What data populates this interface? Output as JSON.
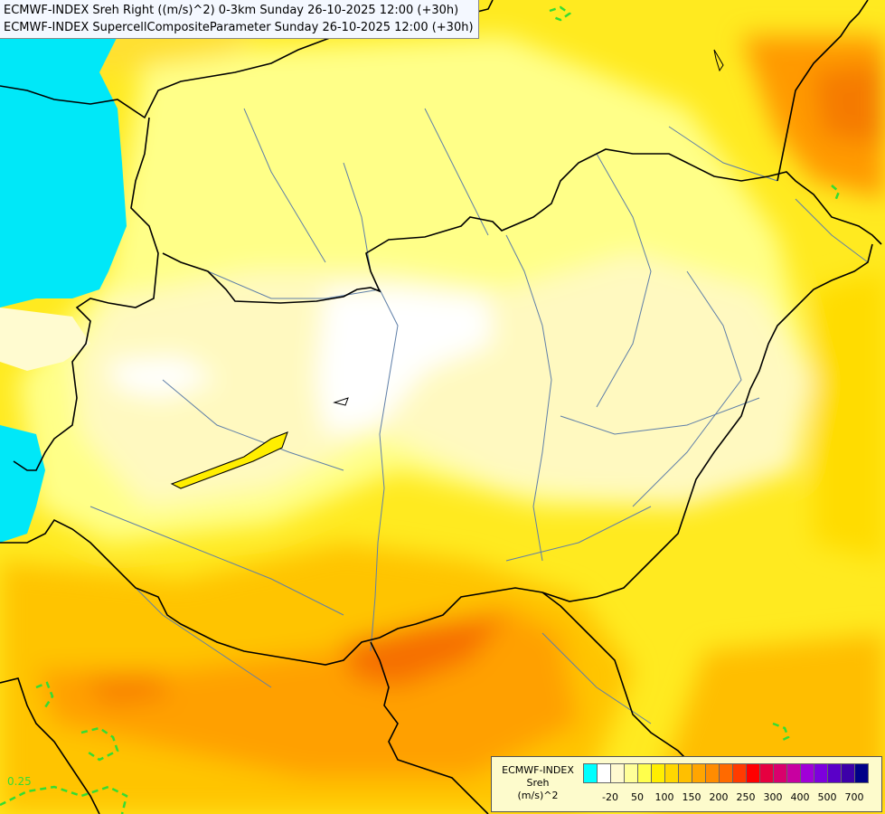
{
  "header": {
    "line1": "ECMWF-INDEX Sreh Right ((m/s)^2) 0-3km Sunday 26-10-2025 12:00 (+30h)",
    "line2": "ECMWF-INDEX SupercellCompositeParameter Sunday 26-10-2025 12:00 (+30h)"
  },
  "map": {
    "contour_label": "0.25",
    "colors": {
      "sea": "#00e8f8",
      "pale": "#fffacd",
      "white": "#ffffff",
      "light": "#ffff99",
      "yellow": "#ffee00",
      "gold": "#ffc800",
      "orange": "#ff9a00",
      "deep_orange": "#f87800",
      "borders": "#000000",
      "rivers": "#5f7fa8",
      "scp_contour": "#33dd33"
    }
  },
  "legend": {
    "title_lines": [
      "ECMWF-INDEX",
      "Sreh",
      "(m/s)^2"
    ],
    "colors": [
      "#00ffff",
      "#ffffff",
      "#fffad0",
      "#ffff99",
      "#ffff4c",
      "#ffee00",
      "#ffd700",
      "#ffbf00",
      "#ffa500",
      "#ff8c00",
      "#ff6a00",
      "#ff3b00",
      "#ff0000",
      "#e60040",
      "#d9006c",
      "#c800a0",
      "#a000d8",
      "#7d00dd",
      "#5a00c8",
      "#3d00a8",
      "#000088"
    ],
    "ticks": [
      "-20",
      "50",
      "100",
      "150",
      "200",
      "250",
      "300",
      "400",
      "500",
      "700"
    ]
  }
}
